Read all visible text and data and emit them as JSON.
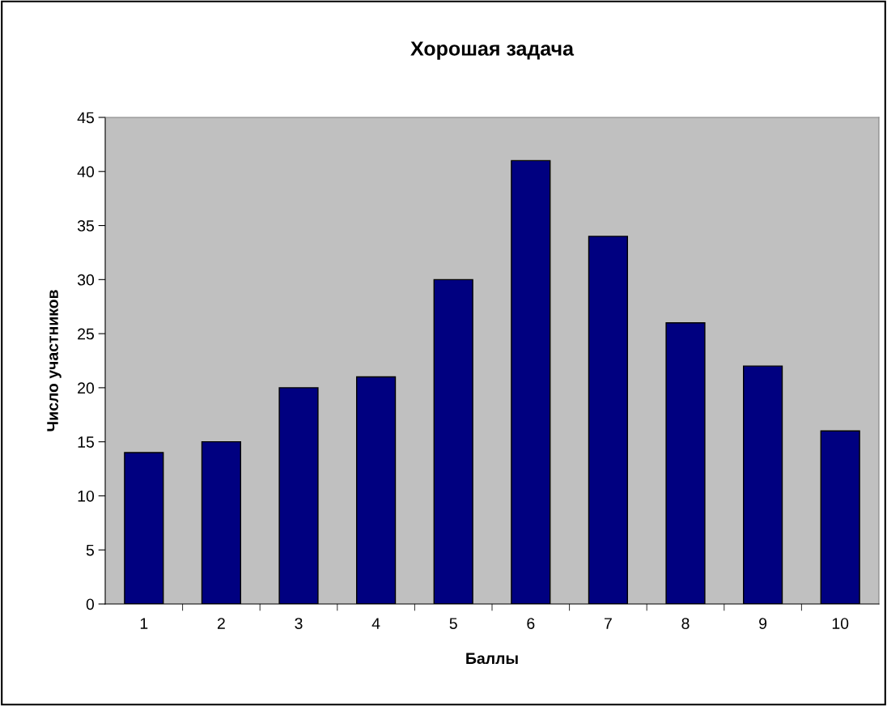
{
  "chart_data": {
    "type": "bar",
    "title": "Хорошая задача",
    "xlabel": "Баллы",
    "ylabel": "Число участников",
    "categories": [
      "1",
      "2",
      "3",
      "4",
      "5",
      "6",
      "7",
      "8",
      "9",
      "10"
    ],
    "values": [
      14,
      15,
      20,
      21,
      30,
      41,
      34,
      26,
      22,
      16
    ],
    "color": "#000080",
    "ylim": [
      0,
      45
    ],
    "yticks": [
      0,
      5,
      10,
      15,
      20,
      25,
      30,
      35,
      40,
      45
    ],
    "grid": false,
    "legend": false
  }
}
